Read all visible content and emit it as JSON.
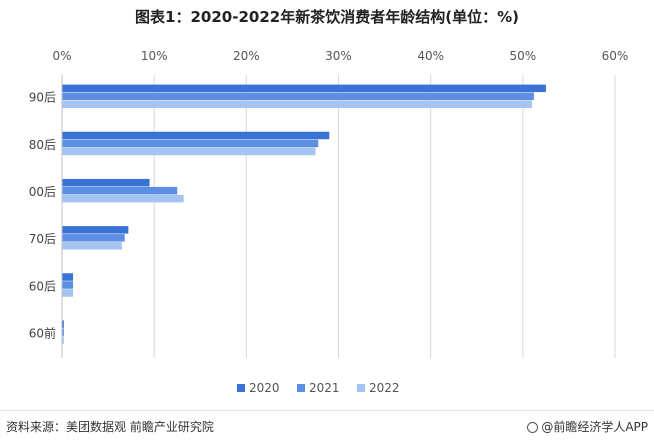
{
  "chart_data": {
    "type": "bar",
    "orientation": "horizontal",
    "title": "图表1：2020-2022年新茶饮消费者年龄结构(单位：%)",
    "categories": [
      "90后",
      "80后",
      "00后",
      "70后",
      "60后",
      "60前"
    ],
    "series": [
      {
        "name": "2020",
        "color": "#3a72d6",
        "values": [
          52.5,
          29.0,
          9.5,
          7.2,
          1.2,
          0.2
        ]
      },
      {
        "name": "2021",
        "color": "#5c8fe3",
        "values": [
          51.2,
          27.8,
          12.5,
          6.8,
          1.2,
          0.2
        ]
      },
      {
        "name": "2022",
        "color": "#a6c4f2",
        "values": [
          51.0,
          27.5,
          13.2,
          6.5,
          1.2,
          0.2
        ]
      }
    ],
    "xlim": [
      0,
      60
    ],
    "xticks": [
      "0%",
      "10%",
      "20%",
      "30%",
      "40%",
      "50%",
      "60%"
    ],
    "grid": true,
    "legend": "bottom"
  },
  "footer": {
    "source": "资料来源：美团数据观 前瞻产业研究院",
    "credit": "@前瞻经济学人APP"
  }
}
